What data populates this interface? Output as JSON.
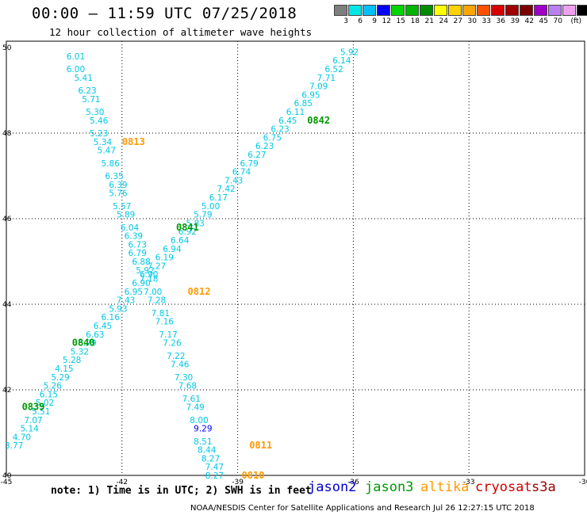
{
  "title": "00:00 — 11:59 UTC 07/25/2018",
  "subtitle": "12 hour collection of altimeter wave heights",
  "legend": {
    "colors": [
      "#7f7f7f",
      "#00e5e5",
      "#00bfff",
      "#0000ff",
      "#00d500",
      "#00b400",
      "#008c00",
      "#ffff00",
      "#ffd200",
      "#ffa500",
      "#ff5000",
      "#d70000",
      "#a00000",
      "#7a0000",
      "#a000c8",
      "#b980f0",
      "#f0a0f0",
      "#000000"
    ],
    "labels": [
      "3",
      "6",
      "9",
      "12",
      "15",
      "18",
      "21",
      "24",
      "27",
      "30",
      "33",
      "36",
      "39",
      "42",
      "45",
      "70",
      "(ft)"
    ]
  },
  "note": "note:  1) Time is in UTC;  2) SWH is in feet",
  "credit": "NOAA/NESDIS Center for Satellite Applications and Research    Jul 26 12:27:15 UTC 2018",
  "satellites": [
    {
      "name": "jason2",
      "color": "#0000cc"
    },
    {
      "name": "jason3",
      "color": "#009900"
    },
    {
      "name": "altika",
      "color": "#ff9900"
    },
    {
      "name": "cryosat",
      "color": "#cc0000"
    },
    {
      "name": "s3a",
      "color": "#990000"
    }
  ],
  "chart_data": {
    "type": "scatter",
    "x_ticks": [
      "-45",
      "-42",
      "-39",
      "-36",
      "-33",
      "-30"
    ],
    "y_ticks": [
      "40",
      "42",
      "44",
      "46",
      "48",
      "50"
    ],
    "xlim": [
      -45,
      -30
    ],
    "ylim": [
      40,
      50
    ],
    "grid": true,
    "pass_labels": [
      {
        "label": "0813",
        "lon": -41.7,
        "lat": 47.8,
        "color": "#ff9900"
      },
      {
        "label": "0842",
        "lon": -36.9,
        "lat": 48.3,
        "color": "#009900"
      },
      {
        "label": "0841",
        "lon": -40.3,
        "lat": 45.8,
        "color": "#009900"
      },
      {
        "label": "0812",
        "lon": -40.0,
        "lat": 44.3,
        "color": "#ff9900"
      },
      {
        "label": "0840",
        "lon": -43.0,
        "lat": 43.1,
        "color": "#009900"
      },
      {
        "label": "0839",
        "lon": -44.3,
        "lat": 41.6,
        "color": "#009900"
      },
      {
        "label": "0811",
        "lon": -38.4,
        "lat": 40.7,
        "color": "#ff9900"
      },
      {
        "label": "0810",
        "lon": -38.6,
        "lat": 40.0,
        "color": "#ff9900"
      }
    ],
    "series": [
      {
        "satellite": "altika",
        "points": [
          {
            "lon": -43.2,
            "lat": 49.8,
            "v": "6.01"
          },
          {
            "lon": -43.2,
            "lat": 49.5,
            "v": "6.00"
          },
          {
            "lon": -43.0,
            "lat": 49.3,
            "v": "5.41"
          },
          {
            "lon": -42.9,
            "lat": 49.0,
            "v": "6.23"
          },
          {
            "lon": -42.8,
            "lat": 48.8,
            "v": "5.71"
          },
          {
            "lon": -42.7,
            "lat": 48.5,
            "v": "5.30"
          },
          {
            "lon": -42.6,
            "lat": 48.3,
            "v": "5.46"
          },
          {
            "lon": -42.6,
            "lat": 48.0,
            "v": "5.23"
          },
          {
            "lon": -42.5,
            "lat": 47.8,
            "v": "5.34"
          },
          {
            "lon": -42.4,
            "lat": 47.6,
            "v": "5.47"
          },
          {
            "lon": -42.3,
            "lat": 47.3,
            "v": "5.86"
          },
          {
            "lon": -42.2,
            "lat": 47.0,
            "v": "6.35"
          },
          {
            "lon": -42.1,
            "lat": 46.8,
            "v": "6.39"
          },
          {
            "lon": -42.1,
            "lat": 46.6,
            "v": "5.76"
          },
          {
            "lon": -42.0,
            "lat": 46.3,
            "v": "5.57"
          },
          {
            "lon": -41.9,
            "lat": 46.1,
            "v": "5.89"
          },
          {
            "lon": -41.8,
            "lat": 45.8,
            "v": "6.04"
          },
          {
            "lon": -41.7,
            "lat": 45.6,
            "v": "6.39"
          },
          {
            "lon": -41.6,
            "lat": 45.4,
            "v": "6.73"
          },
          {
            "lon": -41.6,
            "lat": 45.2,
            "v": "6.79"
          },
          {
            "lon": -41.5,
            "lat": 45.0,
            "v": "6.88"
          },
          {
            "lon": -41.4,
            "lat": 44.8,
            "v": "5.92"
          },
          {
            "lon": -41.3,
            "lat": 44.6,
            "v": "7.18"
          },
          {
            "lon": -41.2,
            "lat": 44.3,
            "v": "7.00"
          },
          {
            "lon": -41.1,
            "lat": 44.1,
            "v": "7.28"
          },
          {
            "lon": -41.0,
            "lat": 43.8,
            "v": "7.81"
          },
          {
            "lon": -40.9,
            "lat": 43.6,
            "v": "7.16"
          },
          {
            "lon": -40.8,
            "lat": 43.3,
            "v": "7.17"
          },
          {
            "lon": -40.7,
            "lat": 43.1,
            "v": "7.26"
          },
          {
            "lon": -40.6,
            "lat": 42.8,
            "v": "7.22"
          },
          {
            "lon": -40.5,
            "lat": 42.6,
            "v": "7.46"
          },
          {
            "lon": -40.4,
            "lat": 42.3,
            "v": "7.30"
          },
          {
            "lon": -40.3,
            "lat": 42.1,
            "v": "7.68"
          },
          {
            "lon": -40.2,
            "lat": 41.8,
            "v": "7.61"
          },
          {
            "lon": -40.1,
            "lat": 41.6,
            "v": "7.49"
          },
          {
            "lon": -40.0,
            "lat": 41.3,
            "v": "8.00"
          },
          {
            "lon": -39.9,
            "lat": 41.1,
            "v": "9.29"
          },
          {
            "lon": -39.9,
            "lat": 40.8,
            "v": "8.51"
          },
          {
            "lon": -39.8,
            "lat": 40.6,
            "v": "8.44"
          },
          {
            "lon": -39.7,
            "lat": 40.4,
            "v": "8.27"
          },
          {
            "lon": -39.6,
            "lat": 40.2,
            "v": "7.47"
          },
          {
            "lon": -39.6,
            "lat": 40.0,
            "v": "8.27"
          }
        ]
      },
      {
        "satellite": "jason3",
        "points": [
          {
            "lon": -36.1,
            "lat": 49.9,
            "v": "5.92"
          },
          {
            "lon": -36.3,
            "lat": 49.7,
            "v": "6.14"
          },
          {
            "lon": -36.5,
            "lat": 49.5,
            "v": "6.52"
          },
          {
            "lon": -36.7,
            "lat": 49.3,
            "v": "7.71"
          },
          {
            "lon": -36.9,
            "lat": 49.1,
            "v": "7.09"
          },
          {
            "lon": -37.1,
            "lat": 48.9,
            "v": "6.95"
          },
          {
            "lon": -37.3,
            "lat": 48.7,
            "v": "6.85"
          },
          {
            "lon": -37.5,
            "lat": 48.5,
            "v": "6.11"
          },
          {
            "lon": -37.7,
            "lat": 48.3,
            "v": "6.45"
          },
          {
            "lon": -37.9,
            "lat": 48.1,
            "v": "6.23"
          },
          {
            "lon": -38.1,
            "lat": 47.9,
            "v": "6.75"
          },
          {
            "lon": -38.3,
            "lat": 47.7,
            "v": "6.23"
          },
          {
            "lon": -38.5,
            "lat": 47.5,
            "v": "6.27"
          },
          {
            "lon": -38.7,
            "lat": 47.3,
            "v": "6.79"
          },
          {
            "lon": -38.9,
            "lat": 47.1,
            "v": "6.74"
          },
          {
            "lon": -39.1,
            "lat": 46.9,
            "v": "7.43"
          },
          {
            "lon": -39.3,
            "lat": 46.7,
            "v": "7.42"
          },
          {
            "lon": -39.5,
            "lat": 46.5,
            "v": "6.17"
          },
          {
            "lon": -39.7,
            "lat": 46.3,
            "v": "5.00"
          },
          {
            "lon": -39.9,
            "lat": 46.1,
            "v": "5.79"
          },
          {
            "lon": -40.1,
            "lat": 45.9,
            "v": "5.83"
          },
          {
            "lon": -40.3,
            "lat": 45.7,
            "v": "6.92"
          },
          {
            "lon": -40.5,
            "lat": 45.5,
            "v": "6.64"
          },
          {
            "lon": -40.7,
            "lat": 45.3,
            "v": "6.94"
          },
          {
            "lon": -40.9,
            "lat": 45.1,
            "v": "6.19"
          },
          {
            "lon": -41.1,
            "lat": 44.9,
            "v": "7.27"
          },
          {
            "lon": -41.3,
            "lat": 44.7,
            "v": "6.90"
          },
          {
            "lon": -41.5,
            "lat": 44.5,
            "v": "6.90"
          },
          {
            "lon": -41.7,
            "lat": 44.3,
            "v": "6.95"
          },
          {
            "lon": -41.9,
            "lat": 44.1,
            "v": "7.43"
          },
          {
            "lon": -42.1,
            "lat": 43.9,
            "v": "5.93"
          },
          {
            "lon": -42.3,
            "lat": 43.7,
            "v": "6.16"
          },
          {
            "lon": -42.5,
            "lat": 43.5,
            "v": "6.45"
          },
          {
            "lon": -42.7,
            "lat": 43.3,
            "v": "6.63"
          },
          {
            "lon": -42.9,
            "lat": 43.1,
            "v": "6.79"
          },
          {
            "lon": -43.1,
            "lat": 42.9,
            "v": "5.32"
          },
          {
            "lon": -43.3,
            "lat": 42.7,
            "v": "5.28"
          },
          {
            "lon": -43.5,
            "lat": 42.5,
            "v": "4.15"
          },
          {
            "lon": -43.6,
            "lat": 42.3,
            "v": "5.29"
          },
          {
            "lon": -43.8,
            "lat": 42.1,
            "v": "5.26"
          },
          {
            "lon": -43.9,
            "lat": 41.9,
            "v": "6.15"
          },
          {
            "lon": -44.0,
            "lat": 41.7,
            "v": "5.02"
          },
          {
            "lon": -44.1,
            "lat": 41.5,
            "v": "5.51"
          },
          {
            "lon": -44.3,
            "lat": 41.3,
            "v": "7.07"
          },
          {
            "lon": -44.4,
            "lat": 41.1,
            "v": "5.14"
          },
          {
            "lon": -44.6,
            "lat": 40.9,
            "v": "4.70"
          },
          {
            "lon": -44.8,
            "lat": 40.7,
            "v": "3.77"
          }
        ]
      }
    ]
  }
}
